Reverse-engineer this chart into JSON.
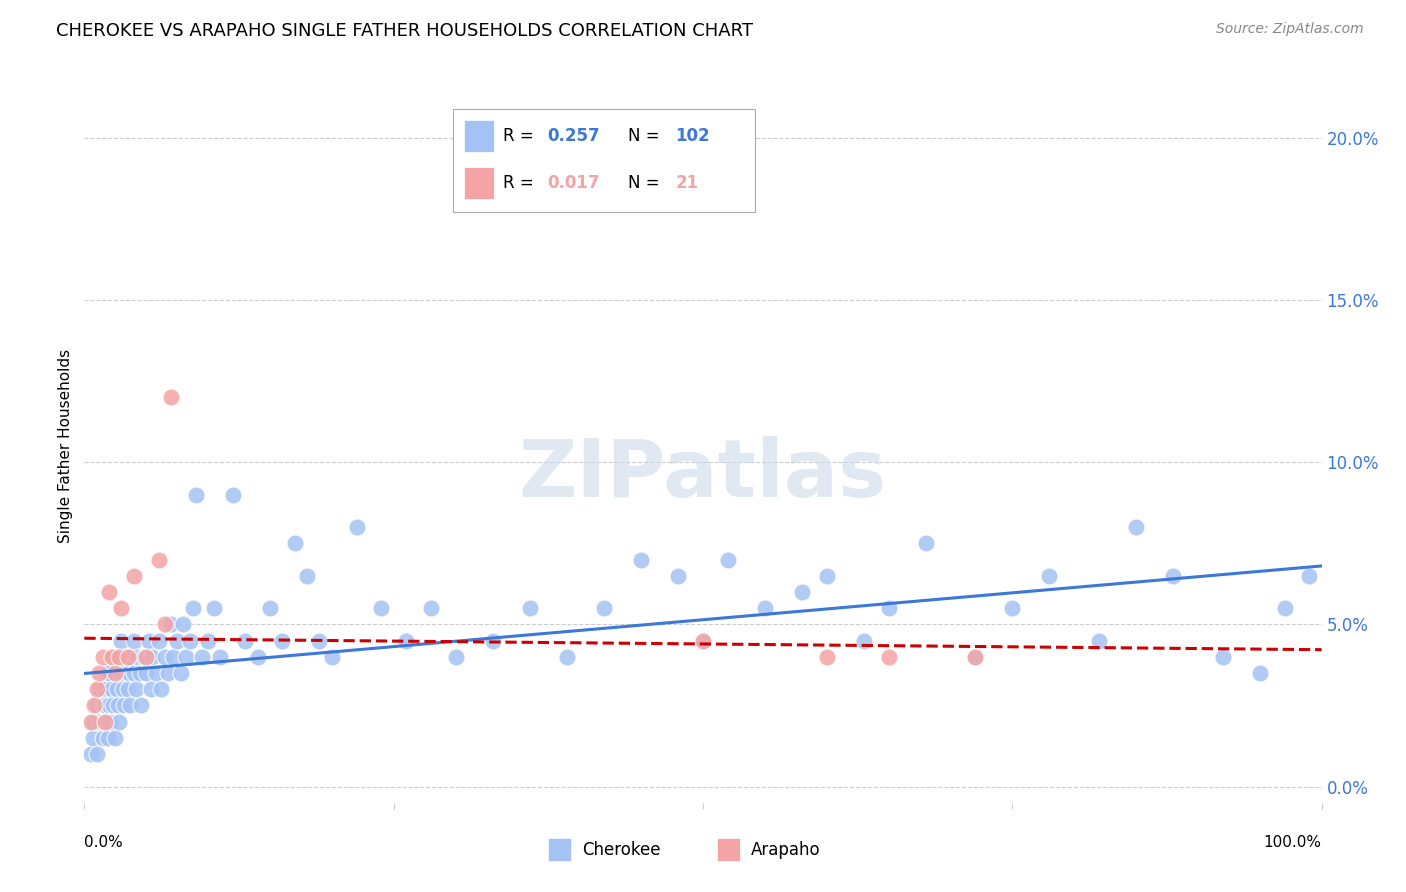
{
  "title": "CHEROKEE VS ARAPAHO SINGLE FATHER HOUSEHOLDS CORRELATION CHART",
  "source": "Source: ZipAtlas.com",
  "ylabel": "Single Father Households",
  "xlim": [
    0.0,
    1.0
  ],
  "ylim": [
    -0.005,
    0.215
  ],
  "yticks": [
    0.0,
    0.05,
    0.1,
    0.15,
    0.2
  ],
  "ytick_labels": [
    "0.0%",
    "5.0%",
    "10.0%",
    "15.0%",
    "20.0%"
  ],
  "cherokee_R": 0.257,
  "cherokee_N": 102,
  "arapaho_R": 0.017,
  "arapaho_N": 21,
  "cherokee_color": "#a4c2f4",
  "arapaho_color": "#f4a4a4",
  "cherokee_line_color": "#3c78d8",
  "arapaho_line_color": "#cc0000",
  "background_color": "#ffffff",
  "grid_color": "#cccccc",
  "cherokee_x": [
    0.005,
    0.007,
    0.008,
    0.01,
    0.01,
    0.012,
    0.013,
    0.015,
    0.015,
    0.016,
    0.016,
    0.017,
    0.018,
    0.018,
    0.019,
    0.02,
    0.02,
    0.021,
    0.022,
    0.022,
    0.023,
    0.025,
    0.025,
    0.026,
    0.027,
    0.028,
    0.03,
    0.03,
    0.031,
    0.032,
    0.033,
    0.035,
    0.036,
    0.037,
    0.038,
    0.04,
    0.04,
    0.042,
    0.043,
    0.045,
    0.046,
    0.048,
    0.05,
    0.052,
    0.054,
    0.055,
    0.058,
    0.06,
    0.062,
    0.065,
    0.068,
    0.07,
    0.072,
    0.075,
    0.078,
    0.08,
    0.082,
    0.085,
    0.088,
    0.09,
    0.095,
    0.1,
    0.105,
    0.11,
    0.12,
    0.13,
    0.14,
    0.15,
    0.16,
    0.17,
    0.18,
    0.19,
    0.2,
    0.22,
    0.24,
    0.26,
    0.28,
    0.3,
    0.33,
    0.36,
    0.39,
    0.42,
    0.45,
    0.48,
    0.5,
    0.52,
    0.55,
    0.58,
    0.6,
    0.63,
    0.65,
    0.68,
    0.72,
    0.75,
    0.78,
    0.82,
    0.85,
    0.88,
    0.92,
    0.95,
    0.97,
    0.99
  ],
  "cherokee_y": [
    0.01,
    0.015,
    0.02,
    0.025,
    0.01,
    0.02,
    0.03,
    0.015,
    0.025,
    0.02,
    0.03,
    0.025,
    0.02,
    0.035,
    0.015,
    0.025,
    0.035,
    0.02,
    0.03,
    0.04,
    0.025,
    0.015,
    0.04,
    0.03,
    0.025,
    0.02,
    0.035,
    0.045,
    0.03,
    0.025,
    0.04,
    0.03,
    0.035,
    0.025,
    0.04,
    0.035,
    0.045,
    0.03,
    0.04,
    0.035,
    0.025,
    0.04,
    0.035,
    0.045,
    0.03,
    0.04,
    0.035,
    0.045,
    0.03,
    0.04,
    0.035,
    0.05,
    0.04,
    0.045,
    0.035,
    0.05,
    0.04,
    0.045,
    0.055,
    0.09,
    0.04,
    0.045,
    0.055,
    0.04,
    0.09,
    0.045,
    0.04,
    0.055,
    0.045,
    0.075,
    0.065,
    0.045,
    0.04,
    0.08,
    0.055,
    0.045,
    0.055,
    0.04,
    0.045,
    0.055,
    0.04,
    0.055,
    0.07,
    0.065,
    0.045,
    0.07,
    0.055,
    0.06,
    0.065,
    0.045,
    0.055,
    0.075,
    0.04,
    0.055,
    0.065,
    0.045,
    0.08,
    0.065,
    0.04,
    0.035,
    0.055,
    0.065
  ],
  "arapaho_x": [
    0.005,
    0.008,
    0.01,
    0.012,
    0.015,
    0.017,
    0.02,
    0.022,
    0.025,
    0.028,
    0.03,
    0.035,
    0.04,
    0.05,
    0.06,
    0.065,
    0.07,
    0.5,
    0.6,
    0.65,
    0.72
  ],
  "arapaho_y": [
    0.02,
    0.025,
    0.03,
    0.035,
    0.04,
    0.02,
    0.06,
    0.04,
    0.035,
    0.04,
    0.055,
    0.04,
    0.065,
    0.04,
    0.07,
    0.05,
    0.12,
    0.045,
    0.04,
    0.04,
    0.04
  ]
}
